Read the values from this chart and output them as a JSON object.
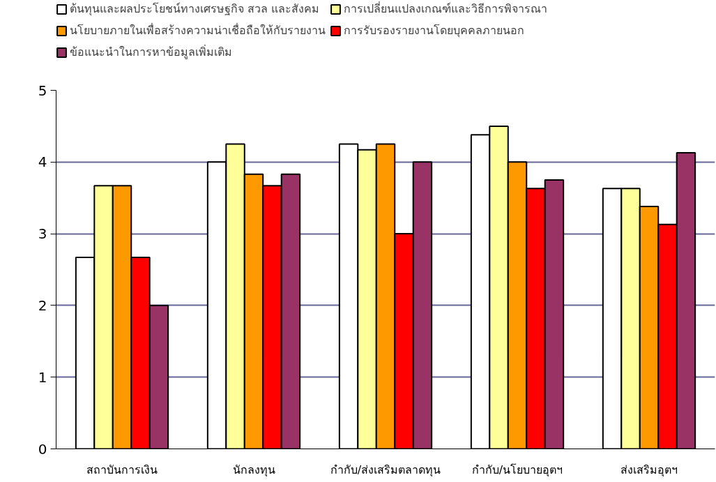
{
  "chart_data": {
    "type": "bar",
    "categories": [
      "สถาบันการเงิน",
      "นักลงทุน",
      "กำกับ/ส่งเสริมตลาดทุน",
      "กำกับ/นโยบายอุตฯ",
      "ส่งเสริมอุตฯ"
    ],
    "series": [
      {
        "name": "ต้นทุนและผลประโยชน์ทางเศรษฐกิจ สวล และสังคม",
        "color": "#ffffff",
        "values": [
          2.67,
          4.0,
          4.25,
          4.38,
          3.63
        ]
      },
      {
        "name": "การเปลี่ยนแปลงเกณฑ์และวิธีการพิจารณา",
        "color": "#ffff99",
        "values": [
          3.67,
          4.25,
          4.17,
          4.5,
          3.63
        ]
      },
      {
        "name": "นโยบายภายในเพื่อสร้างความน่าเชื่อถือให้กับรายงาน",
        "color": "#ff9900",
        "values": [
          3.67,
          3.83,
          4.25,
          4.0,
          3.38
        ]
      },
      {
        "name": "การรับรองรายงานโดยบุคคลภายนอก",
        "color": "#ff0000",
        "values": [
          2.67,
          3.67,
          3.0,
          3.63,
          3.13
        ]
      },
      {
        "name": "ข้อแนะนำในการหาข้อมูลเพิ่มเติม",
        "color": "#993366",
        "values": [
          2.0,
          3.83,
          4.0,
          3.75,
          4.13
        ]
      }
    ],
    "ylim": [
      0,
      5
    ],
    "yticks": [
      0,
      1,
      2,
      3,
      4,
      5
    ],
    "grid": "y",
    "legend": "top"
  }
}
